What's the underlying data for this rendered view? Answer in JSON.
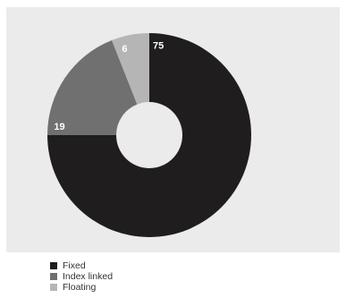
{
  "chart_data": {
    "type": "pie",
    "title": "",
    "categories": [
      "Fixed",
      "Index linked",
      "Floating"
    ],
    "values": [
      75,
      19,
      6
    ],
    "colors": [
      "#1f1d1d",
      "#707070",
      "#b5b5b5"
    ],
    "data_labels": [
      "75",
      "19",
      "6"
    ],
    "legend": {
      "placement": "bottom-left",
      "items": [
        {
          "label": "Fixed",
          "color": "#1f1d1d"
        },
        {
          "label": "Index linked",
          "color": "#707070"
        },
        {
          "label": "Floating",
          "color": "#b5b5b5"
        }
      ]
    },
    "background": "#ebebeb",
    "hole": "#ffffff"
  }
}
